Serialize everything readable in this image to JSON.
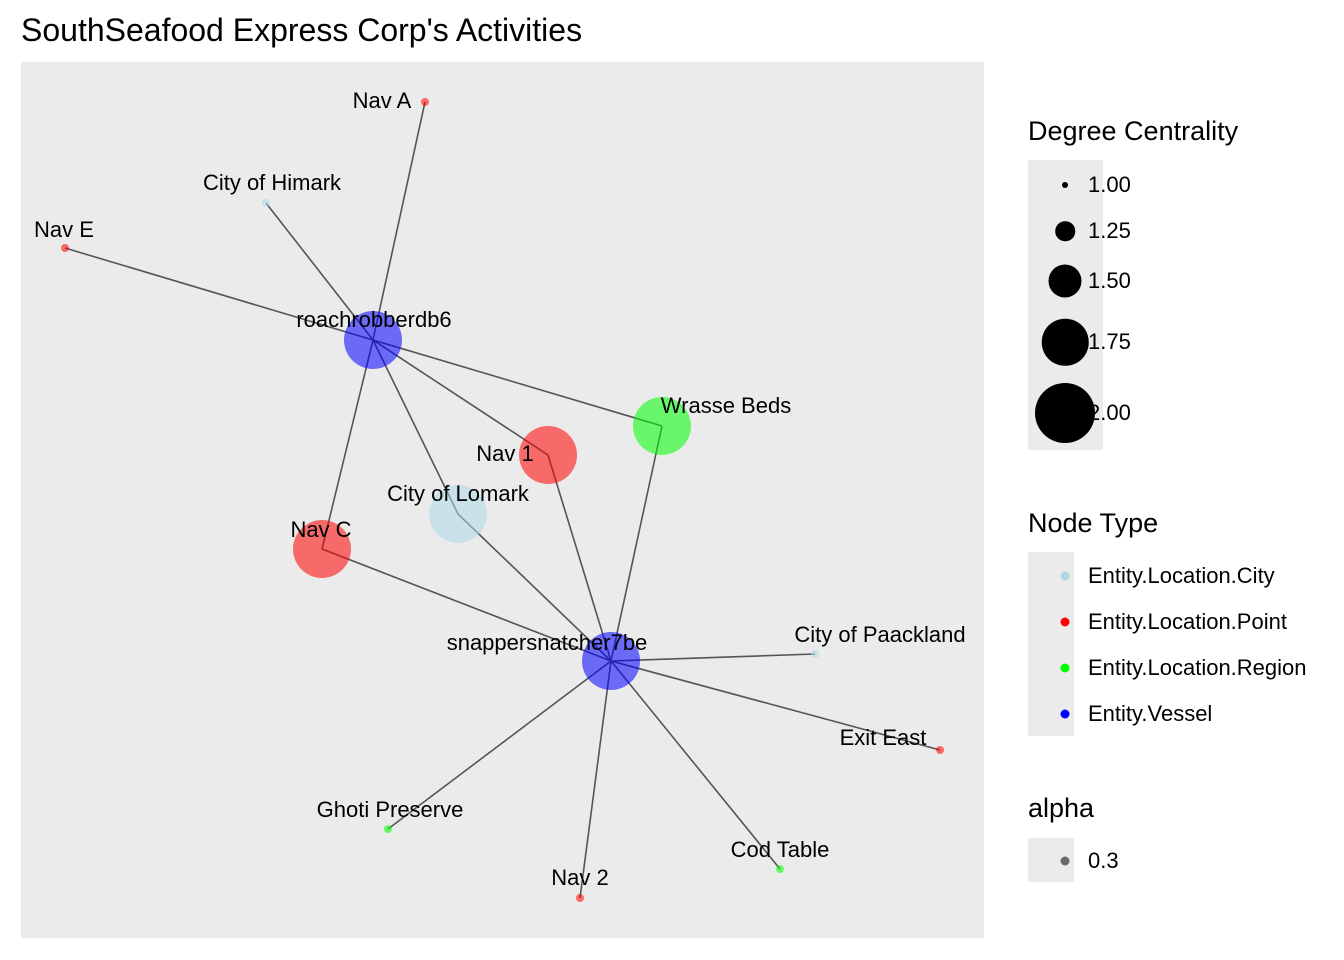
{
  "title": "SouthSeafood Express Corp's Activities",
  "colors": {
    "panel": "#ebebeb",
    "edge": "#555555",
    "Entity.Location.City": "#add8e6",
    "Entity.Location.Point": "#ff0000",
    "Entity.Location.Region": "#00ff00",
    "Entity.Vessel": "#0000ff"
  },
  "nodes": [
    {
      "id": "roachrobberdb6",
      "label": "roachrobberdb6",
      "type": "Entity.Vessel",
      "centrality": 2.0
    },
    {
      "id": "snappersnatcher7be",
      "label": "snappersnatcher7be",
      "type": "Entity.Vessel",
      "centrality": 2.0
    },
    {
      "id": "Nav A",
      "label": "Nav A",
      "type": "Entity.Location.Point",
      "centrality": 1.0
    },
    {
      "id": "City of Himark",
      "label": "City of Himark",
      "type": "Entity.Location.City",
      "centrality": 1.0
    },
    {
      "id": "Nav E",
      "label": "Nav E",
      "type": "Entity.Location.Point",
      "centrality": 1.0
    },
    {
      "id": "Wrasse Beds",
      "label": "Wrasse Beds",
      "type": "Entity.Location.Region",
      "centrality": 2.0
    },
    {
      "id": "Nav 1",
      "label": "Nav 1",
      "type": "Entity.Location.Point",
      "centrality": 2.0
    },
    {
      "id": "City of Lomark",
      "label": "City of Lomark",
      "type": "Entity.Location.City",
      "centrality": 2.0
    },
    {
      "id": "Nav C",
      "label": "Nav C",
      "type": "Entity.Location.Point",
      "centrality": 2.0
    },
    {
      "id": "City of Paackland",
      "label": "City of Paackland",
      "type": "Entity.Location.City",
      "centrality": 1.0
    },
    {
      "id": "Exit East",
      "label": "Exit East",
      "type": "Entity.Location.Point",
      "centrality": 1.0
    },
    {
      "id": "Ghoti Preserve",
      "label": "Ghoti Preserve",
      "type": "Entity.Location.Region",
      "centrality": 1.0
    },
    {
      "id": "Cod Table",
      "label": "Cod Table",
      "type": "Entity.Location.Region",
      "centrality": 1.0
    },
    {
      "id": "Nav 2",
      "label": "Nav 2",
      "type": "Entity.Location.Point",
      "centrality": 1.0
    }
  ],
  "edges": [
    {
      "from": "roachrobberdb6",
      "to": "Nav A"
    },
    {
      "from": "roachrobberdb6",
      "to": "City of Himark"
    },
    {
      "from": "roachrobberdb6",
      "to": "Nav E"
    },
    {
      "from": "roachrobberdb6",
      "to": "Wrasse Beds"
    },
    {
      "from": "roachrobberdb6",
      "to": "Nav 1"
    },
    {
      "from": "roachrobberdb6",
      "to": "City of Lomark"
    },
    {
      "from": "roachrobberdb6",
      "to": "Nav C"
    },
    {
      "from": "snappersnatcher7be",
      "to": "Wrasse Beds"
    },
    {
      "from": "snappersnatcher7be",
      "to": "Nav 1"
    },
    {
      "from": "snappersnatcher7be",
      "to": "City of Lomark"
    },
    {
      "from": "snappersnatcher7be",
      "to": "Nav C"
    },
    {
      "from": "snappersnatcher7be",
      "to": "City of Paackland"
    },
    {
      "from": "snappersnatcher7be",
      "to": "Exit East"
    },
    {
      "from": "snappersnatcher7be",
      "to": "Ghoti Preserve"
    },
    {
      "from": "snappersnatcher7be",
      "to": "Cod Table"
    },
    {
      "from": "snappersnatcher7be",
      "to": "Nav 2"
    }
  ],
  "legend": {
    "size": {
      "title": "Degree Centrality",
      "items": [
        {
          "label": "1.00",
          "value": 1.0
        },
        {
          "label": "1.25",
          "value": 1.25
        },
        {
          "label": "1.50",
          "value": 1.5
        },
        {
          "label": "1.75",
          "value": 1.75
        },
        {
          "label": "2.00",
          "value": 2.0
        }
      ]
    },
    "type": {
      "title": "Node Type",
      "items": [
        {
          "label": "Entity.Location.City",
          "key": "Entity.Location.City"
        },
        {
          "label": "Entity.Location.Point",
          "key": "Entity.Location.Point"
        },
        {
          "label": "Entity.Location.Region",
          "key": "Entity.Location.Region"
        },
        {
          "label": "Entity.Vessel",
          "key": "Entity.Vessel"
        }
      ]
    },
    "alpha": {
      "title": "alpha",
      "items": [
        {
          "label": "0.3",
          "value": 0.3
        }
      ]
    }
  }
}
